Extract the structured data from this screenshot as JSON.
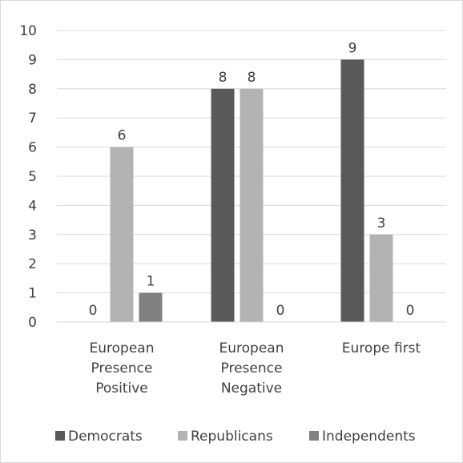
{
  "chart_data": {
    "type": "bar",
    "title": "",
    "xlabel": "",
    "ylabel": "",
    "ylim": [
      0,
      10
    ],
    "yticks": [
      0,
      1,
      2,
      3,
      4,
      5,
      6,
      7,
      8,
      9,
      10
    ],
    "grid": true,
    "legend_position": "bottom",
    "categories": [
      [
        "European",
        "Presence",
        "Positive"
      ],
      [
        "European",
        "Presence",
        "Negative"
      ],
      [
        "Europe first"
      ]
    ],
    "series": [
      {
        "name": "Democrats",
        "color": "#595959",
        "values": [
          0,
          8,
          9
        ]
      },
      {
        "name": "Republicans",
        "color": "#b3b3b3",
        "values": [
          6,
          8,
          3
        ]
      },
      {
        "name": "Independents",
        "color": "#808080",
        "values": [
          1,
          0,
          0
        ]
      }
    ]
  }
}
